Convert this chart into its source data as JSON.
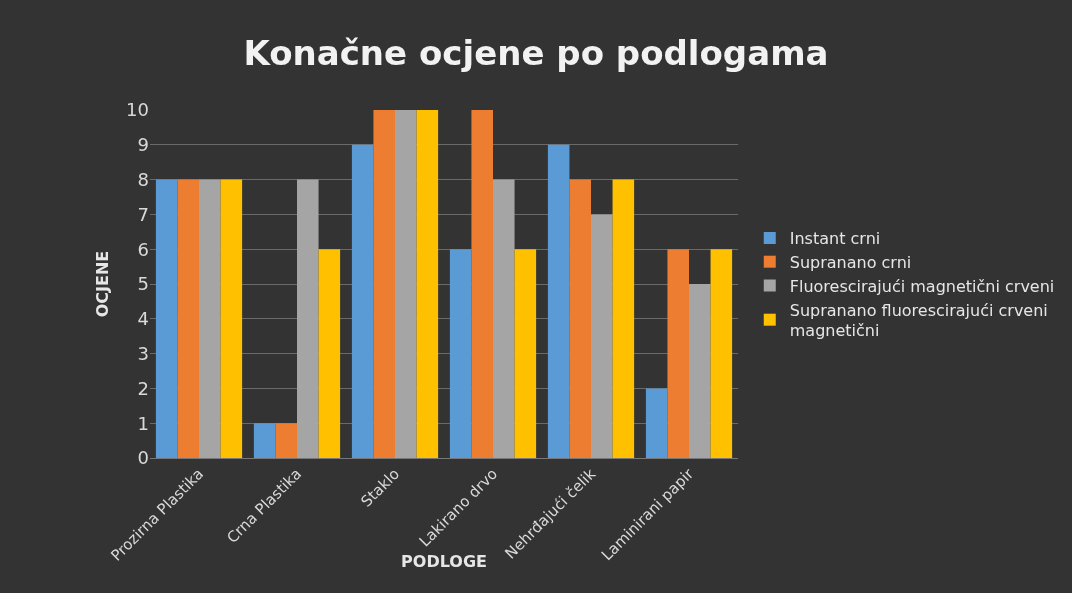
{
  "chart_data": {
    "type": "bar",
    "title": "Konačne ocjene po podlogama",
    "xlabel": "PODLOGE",
    "ylabel": "OCJENE",
    "categories": [
      "Prozirna Plastika",
      "Crna Plastika",
      "Staklo",
      "Lakirano drvo",
      "Nehrđajući čelik",
      "Laminirani papir"
    ],
    "series": [
      {
        "name": "Instant crni",
        "color": "#5b9bd5",
        "values": [
          8,
          1,
          9,
          6,
          9,
          2
        ]
      },
      {
        "name": "Supranano crni",
        "color": "#ed7d31",
        "values": [
          8,
          1,
          10,
          10,
          8,
          6
        ]
      },
      {
        "name": "Fluorescirajući magnetični crveni",
        "color": "#a5a5a5",
        "values": [
          8,
          8,
          10,
          8,
          7,
          5
        ]
      },
      {
        "name": "Supranano fluorescirajući crveni magnetični",
        "color": "#ffc000",
        "values": [
          8,
          6,
          10,
          6,
          8,
          6
        ]
      }
    ],
    "ylim": [
      0,
      10
    ],
    "yticks": [
      0,
      1,
      2,
      3,
      4,
      5,
      6,
      7,
      8,
      9,
      10
    ],
    "grid": "y",
    "legend": "right"
  }
}
